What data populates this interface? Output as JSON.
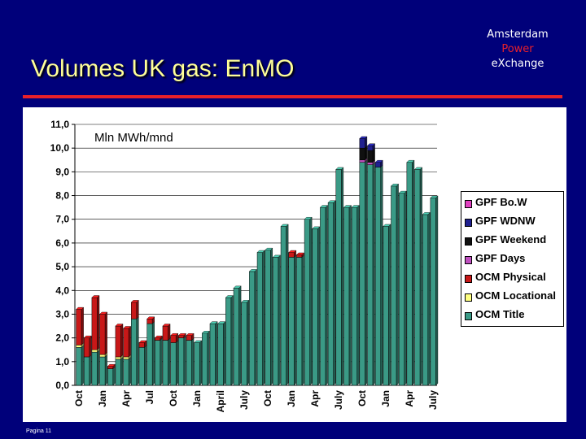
{
  "slide": {
    "title": "Volumes UK gas: EnMO",
    "brand_line1": "Amsterdam",
    "brand_line2": "Power",
    "brand_line3": "eXchange",
    "footer": "Pagina 11",
    "colors": {
      "background": "#00007a",
      "title": "#ffff99",
      "brand_accent": "#e8202a"
    }
  },
  "chart_data": {
    "type": "bar",
    "stacked": true,
    "unit_label": "Mln MWh/mnd",
    "ylim": [
      0,
      11
    ],
    "yticks": [
      "0,0",
      "1,0",
      "2,0",
      "3,0",
      "4,0",
      "5,0",
      "6,0",
      "7,0",
      "8,0",
      "9,0",
      "10,0",
      "11,0"
    ],
    "x_tick_labels": [
      "Oct",
      "Jan",
      "Apr",
      "Jul",
      "Oct",
      "Jan",
      "April",
      "July",
      "Oct",
      "Jan",
      "Apr",
      "July",
      "Oct",
      "Jan",
      "Apr",
      "July"
    ],
    "x_tick_positions": [
      0,
      3,
      6,
      9,
      12,
      15,
      18,
      21,
      24,
      27,
      30,
      33,
      36,
      39,
      42,
      45
    ],
    "legend_position": "right",
    "series": [
      {
        "name": "OCM Title",
        "color": "#3a9a86",
        "values": [
          1.6,
          1.2,
          1.4,
          1.2,
          0.7,
          1.1,
          1.1,
          2.8,
          1.6,
          2.6,
          1.9,
          1.9,
          1.8,
          2.0,
          1.9,
          1.8,
          2.2,
          2.6,
          2.6,
          3.7,
          4.1,
          3.5,
          4.8,
          5.6,
          5.7,
          5.4,
          6.7,
          5.4,
          5.4,
          7.0,
          6.6,
          7.5,
          7.7,
          9.1,
          7.5,
          7.5,
          9.4,
          9.3,
          9.2,
          6.7,
          8.4,
          8.1,
          9.4,
          9.1,
          7.2,
          7.9
        ]
      },
      {
        "name": "OCM Locational",
        "color": "#ffff80",
        "values": [
          0.1,
          0,
          0.1,
          0.1,
          0,
          0.1,
          0.1,
          0,
          0,
          0,
          0,
          0,
          0,
          0,
          0,
          0,
          0,
          0,
          0,
          0,
          0,
          0,
          0,
          0,
          0,
          0,
          0,
          0,
          0,
          0,
          0,
          0,
          0,
          0,
          0,
          0,
          0,
          0,
          0,
          0,
          0,
          0,
          0,
          0,
          0,
          0
        ]
      },
      {
        "name": "OCM Physical",
        "color": "#c81818",
        "values": [
          1.5,
          0.8,
          2.2,
          1.7,
          0.1,
          1.3,
          1.2,
          0.7,
          0.2,
          0.2,
          0.1,
          0.6,
          0.3,
          0.1,
          0.2,
          0,
          0,
          0,
          0,
          0,
          0,
          0,
          0,
          0,
          0,
          0,
          0,
          0.2,
          0.1,
          0,
          0,
          0,
          0,
          0,
          0,
          0,
          0,
          0,
          0,
          0,
          0,
          0,
          0,
          0,
          0,
          0
        ]
      },
      {
        "name": "GPF Days",
        "color": "#c050c0",
        "values": [
          0,
          0,
          0,
          0,
          0,
          0,
          0,
          0,
          0,
          0,
          0,
          0,
          0,
          0,
          0,
          0,
          0,
          0,
          0,
          0,
          0,
          0,
          0,
          0,
          0,
          0,
          0,
          0,
          0,
          0,
          0,
          0,
          0,
          0,
          0,
          0,
          0.1,
          0.1,
          0,
          0,
          0,
          0,
          0,
          0,
          0,
          0
        ]
      },
      {
        "name": "GPF Weekend",
        "color": "#101010",
        "values": [
          0,
          0,
          0,
          0,
          0,
          0,
          0,
          0,
          0,
          0,
          0,
          0,
          0,
          0,
          0,
          0,
          0,
          0,
          0,
          0,
          0,
          0,
          0,
          0,
          0,
          0,
          0,
          0,
          0,
          0,
          0,
          0,
          0,
          0,
          0,
          0,
          0.5,
          0.5,
          0,
          0,
          0,
          0,
          0,
          0,
          0,
          0
        ]
      },
      {
        "name": "GPF WDNW",
        "color": "#202090",
        "values": [
          0,
          0,
          0,
          0,
          0,
          0,
          0,
          0,
          0,
          0,
          0,
          0,
          0,
          0,
          0,
          0,
          0,
          0,
          0,
          0,
          0,
          0,
          0,
          0,
          0,
          0,
          0,
          0,
          0,
          0,
          0,
          0,
          0,
          0,
          0,
          0,
          0.4,
          0.2,
          0.2,
          0,
          0,
          0,
          0,
          0,
          0,
          0
        ]
      },
      {
        "name": "GPF Bo.W",
        "color": "#e040c0",
        "values": [
          0,
          0,
          0,
          0,
          0,
          0,
          0,
          0,
          0,
          0,
          0,
          0,
          0,
          0,
          0,
          0,
          0,
          0,
          0,
          0,
          0,
          0,
          0,
          0,
          0,
          0,
          0,
          0,
          0,
          0,
          0,
          0,
          0,
          0,
          0,
          0,
          0,
          0,
          0,
          0,
          0,
          0,
          0,
          0,
          0,
          0
        ]
      }
    ]
  }
}
